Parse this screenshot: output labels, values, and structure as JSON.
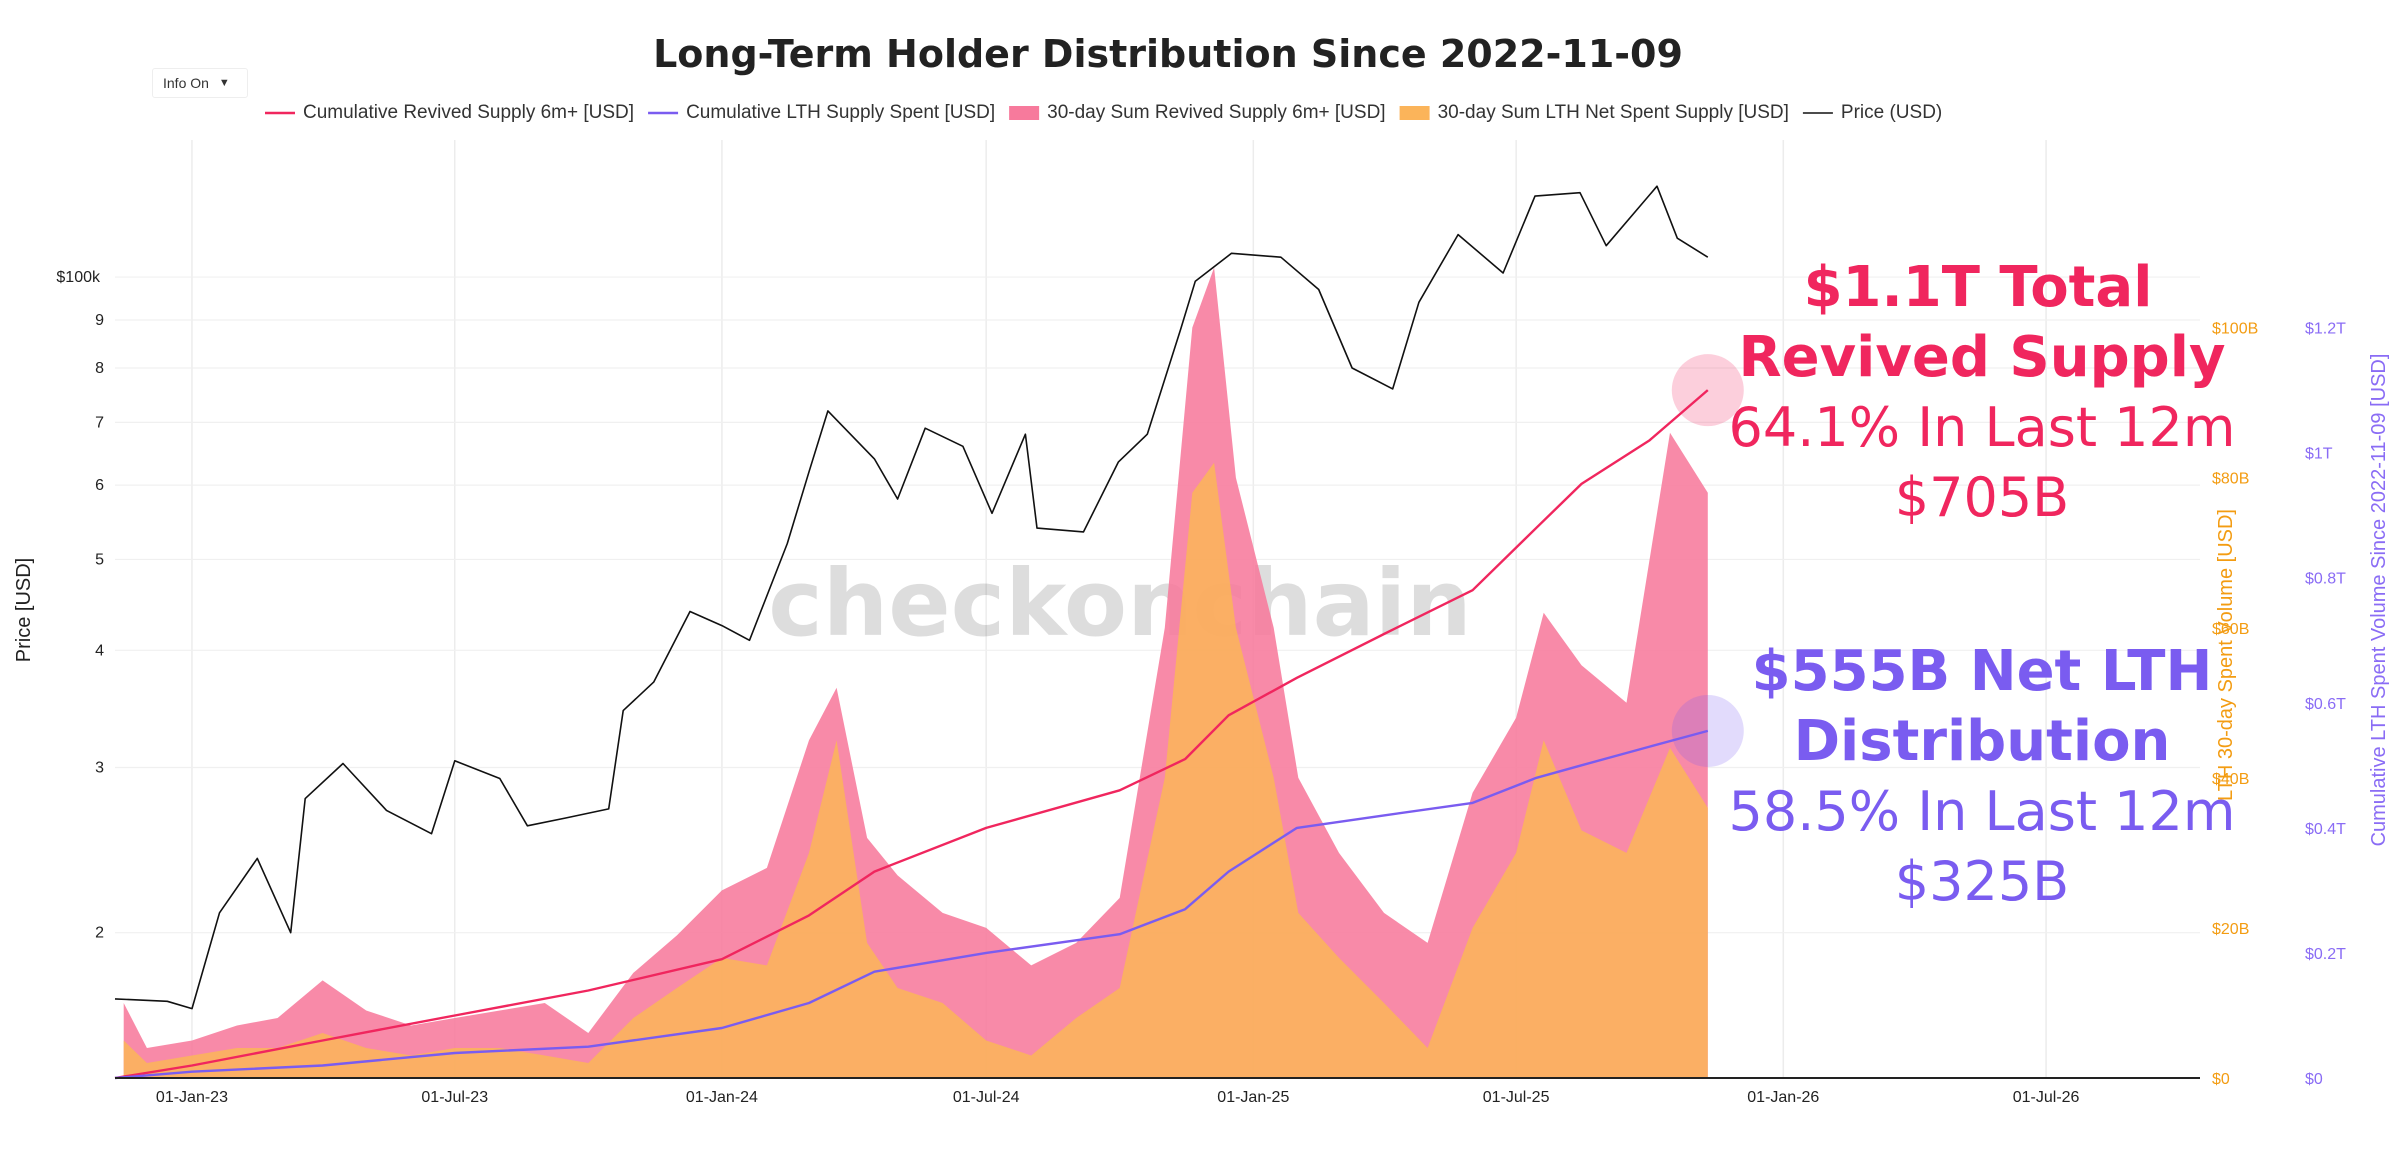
{
  "ui": {
    "info_button": {
      "label": "Info On",
      "caret": "▼"
    },
    "watermark": "checkonchain"
  },
  "colors": {
    "revived": "#f0265e",
    "revived_fill": "#f77a9c",
    "lth_spent": "#7a5cf0",
    "lth_net_fill": "#fbb45a",
    "price": "#111111",
    "left_axis": "#222222",
    "orange_axis": "#f39c12",
    "purple_axis": "#8a6cf5"
  },
  "annotations": {
    "revived": {
      "line1": "$1.1T Total",
      "line2": "Revived Supply",
      "line3": "64.1% In Last 12m",
      "line4": "$705B"
    },
    "lth": {
      "line1": "$555B Net LTH",
      "line2": "Distribution",
      "line3": "58.5% In Last 12m",
      "line4": "$325B"
    }
  },
  "chart_data": {
    "type": "line",
    "title": "Long-Term Holder Distribution Since 2022-11-09",
    "legend_position": "top",
    "grid": true,
    "x_axis": {
      "type": "date",
      "range": [
        "2022-11-09",
        "2026-10-15"
      ],
      "tick_labels": [
        "01-Jan-23",
        "01-Jul-23",
        "01-Jan-24",
        "01-Jul-24",
        "01-Jan-25",
        "01-Jul-25",
        "01-Jan-26",
        "01-Jul-26"
      ],
      "tick_dates": [
        "2023-01-01",
        "2023-07-01",
        "2024-01-01",
        "2024-07-01",
        "2025-01-01",
        "2025-07-01",
        "2026-01-01",
        "2026-07-01"
      ]
    },
    "y_axes": {
      "price": {
        "title": "Price [USD]",
        "scale": "log",
        "range": [
          14000,
          140000
        ],
        "ticks": [
          {
            "value": 20000,
            "label": "2"
          },
          {
            "value": 30000,
            "label": "3"
          },
          {
            "value": 40000,
            "label": "4"
          },
          {
            "value": 50000,
            "label": "5"
          },
          {
            "value": 60000,
            "label": "6"
          },
          {
            "value": 70000,
            "label": "7"
          },
          {
            "value": 80000,
            "label": "8"
          },
          {
            "value": 90000,
            "label": "9"
          },
          {
            "value": 100000,
            "label": "$100k"
          }
        ]
      },
      "spent_volume_30d": {
        "title": "LTH 30-day Spent Volume [USD]",
        "scale": "linear",
        "range": [
          0,
          125
        ],
        "unit": "B",
        "ticks": [
          {
            "value": 0,
            "label": "$0"
          },
          {
            "value": 20,
            "label": "$20B"
          },
          {
            "value": 40,
            "label": "$40B"
          },
          {
            "value": 60,
            "label": "$60B"
          },
          {
            "value": 80,
            "label": "$80B"
          },
          {
            "value": 100,
            "label": "$100B"
          }
        ]
      },
      "cumulative": {
        "title": "Cumulative LTH Spent Volume Since 2022-11-09 [USD]",
        "scale": "linear",
        "range": [
          0,
          1.5
        ],
        "unit": "T",
        "ticks": [
          {
            "value": 0,
            "label": "$0"
          },
          {
            "value": 0.2,
            "label": "$0.2T"
          },
          {
            "value": 0.4,
            "label": "$0.4T"
          },
          {
            "value": 0.6,
            "label": "$0.6T"
          },
          {
            "value": 0.8,
            "label": "$0.8T"
          },
          {
            "value": 1.0,
            "label": "$1T"
          },
          {
            "value": 1.2,
            "label": "$1.2T"
          }
        ]
      }
    },
    "series": [
      {
        "name": "Cumulative Revived Supply 6m+ [USD]",
        "axis": "cumulative",
        "style": "line",
        "color": "#f0265e",
        "points": [
          [
            "2022-11-09",
            0
          ],
          [
            "2023-01-01",
            0.02
          ],
          [
            "2023-04-01",
            0.06
          ],
          [
            "2023-07-01",
            0.1
          ],
          [
            "2023-10-01",
            0.14
          ],
          [
            "2024-01-01",
            0.19
          ],
          [
            "2024-03-01",
            0.26
          ],
          [
            "2024-04-15",
            0.33
          ],
          [
            "2024-07-01",
            0.4
          ],
          [
            "2024-10-01",
            0.46
          ],
          [
            "2024-11-15",
            0.51
          ],
          [
            "2024-12-15",
            0.58
          ],
          [
            "2025-01-31",
            0.64
          ],
          [
            "2025-04-01",
            0.71
          ],
          [
            "2025-06-01",
            0.78
          ],
          [
            "2025-07-15",
            0.88
          ],
          [
            "2025-08-15",
            0.95
          ],
          [
            "2025-10-01",
            1.02
          ],
          [
            "2025-11-10",
            1.1
          ]
        ]
      },
      {
        "name": "Cumulative LTH Supply Spent [USD]",
        "axis": "cumulative",
        "style": "line",
        "color": "#7a5cf0",
        "points": [
          [
            "2022-11-09",
            0
          ],
          [
            "2023-01-01",
            0.01
          ],
          [
            "2023-04-01",
            0.02
          ],
          [
            "2023-07-01",
            0.04
          ],
          [
            "2023-10-01",
            0.05
          ],
          [
            "2024-01-01",
            0.08
          ],
          [
            "2024-03-01",
            0.12
          ],
          [
            "2024-04-15",
            0.17
          ],
          [
            "2024-07-01",
            0.2
          ],
          [
            "2024-10-01",
            0.23
          ],
          [
            "2024-11-15",
            0.27
          ],
          [
            "2024-12-15",
            0.33
          ],
          [
            "2025-01-31",
            0.4
          ],
          [
            "2025-04-01",
            0.42
          ],
          [
            "2025-06-01",
            0.44
          ],
          [
            "2025-07-15",
            0.48
          ],
          [
            "2025-08-15",
            0.5
          ],
          [
            "2025-10-01",
            0.53
          ],
          [
            "2025-11-10",
            0.555
          ]
        ]
      },
      {
        "name": "30-day Sum Revived Supply 6m+ [USD]",
        "axis": "spent_volume_30d",
        "style": "area",
        "color": "#f77a9c",
        "points": [
          [
            "2022-11-15",
            10
          ],
          [
            "2022-12-01",
            4
          ],
          [
            "2023-01-01",
            5
          ],
          [
            "2023-02-01",
            7
          ],
          [
            "2023-03-01",
            8
          ],
          [
            "2023-04-01",
            13
          ],
          [
            "2023-05-01",
            9
          ],
          [
            "2023-06-01",
            7
          ],
          [
            "2023-07-01",
            8
          ],
          [
            "2023-08-01",
            9
          ],
          [
            "2023-09-01",
            10
          ],
          [
            "2023-10-01",
            6
          ],
          [
            "2023-11-01",
            14
          ],
          [
            "2023-12-01",
            19
          ],
          [
            "2024-01-01",
            25
          ],
          [
            "2024-02-01",
            28
          ],
          [
            "2024-03-01",
            45
          ],
          [
            "2024-03-20",
            52
          ],
          [
            "2024-04-10",
            32
          ],
          [
            "2024-05-01",
            27
          ],
          [
            "2024-06-01",
            22
          ],
          [
            "2024-07-01",
            20
          ],
          [
            "2024-08-01",
            15
          ],
          [
            "2024-09-01",
            18
          ],
          [
            "2024-10-01",
            24
          ],
          [
            "2024-11-01",
            60
          ],
          [
            "2024-11-20",
            100
          ],
          [
            "2024-12-05",
            108
          ],
          [
            "2024-12-20",
            80
          ],
          [
            "2025-01-15",
            60
          ],
          [
            "2025-02-01",
            40
          ],
          [
            "2025-03-01",
            30
          ],
          [
            "2025-04-01",
            22
          ],
          [
            "2025-05-01",
            18
          ],
          [
            "2025-06-01",
            38
          ],
          [
            "2025-07-01",
            48
          ],
          [
            "2025-07-20",
            62
          ],
          [
            "2025-08-15",
            55
          ],
          [
            "2025-09-15",
            50
          ],
          [
            "2025-10-15",
            86
          ],
          [
            "2025-11-10",
            78
          ]
        ]
      },
      {
        "name": "30-day Sum LTH Net Spent Supply [USD]",
        "axis": "spent_volume_30d",
        "style": "area",
        "color": "#fbb45a",
        "points": [
          [
            "2022-11-15",
            5
          ],
          [
            "2022-12-01",
            2
          ],
          [
            "2023-01-01",
            3
          ],
          [
            "2023-02-01",
            4
          ],
          [
            "2023-03-01",
            4
          ],
          [
            "2023-04-01",
            6
          ],
          [
            "2023-05-01",
            4
          ],
          [
            "2023-06-01",
            3
          ],
          [
            "2023-07-01",
            4
          ],
          [
            "2023-08-01",
            4
          ],
          [
            "2023-09-01",
            3
          ],
          [
            "2023-10-01",
            2
          ],
          [
            "2023-11-01",
            8
          ],
          [
            "2023-12-01",
            12
          ],
          [
            "2024-01-01",
            16
          ],
          [
            "2024-02-01",
            15
          ],
          [
            "2024-03-01",
            30
          ],
          [
            "2024-03-20",
            45
          ],
          [
            "2024-04-10",
            18
          ],
          [
            "2024-05-01",
            12
          ],
          [
            "2024-06-01",
            10
          ],
          [
            "2024-07-01",
            5
          ],
          [
            "2024-08-01",
            3
          ],
          [
            "2024-09-01",
            8
          ],
          [
            "2024-10-01",
            12
          ],
          [
            "2024-11-01",
            40
          ],
          [
            "2024-11-20",
            78
          ],
          [
            "2024-12-05",
            82
          ],
          [
            "2024-12-20",
            60
          ],
          [
            "2025-01-15",
            40
          ],
          [
            "2025-02-01",
            22
          ],
          [
            "2025-03-01",
            16
          ],
          [
            "2025-04-01",
            10
          ],
          [
            "2025-05-01",
            4
          ],
          [
            "2025-06-01",
            20
          ],
          [
            "2025-07-01",
            30
          ],
          [
            "2025-07-20",
            45
          ],
          [
            "2025-08-15",
            33
          ],
          [
            "2025-09-15",
            30
          ],
          [
            "2025-10-15",
            44
          ],
          [
            "2025-11-10",
            36
          ]
        ]
      },
      {
        "name": "Price (USD)",
        "axis": "price",
        "style": "line",
        "color": "#111111",
        "points": [
          [
            "2022-11-09",
            17000
          ],
          [
            "2022-12-15",
            16900
          ],
          [
            "2023-01-01",
            16600
          ],
          [
            "2023-01-20",
            21000
          ],
          [
            "2023-02-15",
            24000
          ],
          [
            "2023-03-10",
            20000
          ],
          [
            "2023-03-20",
            27800
          ],
          [
            "2023-04-15",
            30300
          ],
          [
            "2023-05-15",
            27000
          ],
          [
            "2023-06-15",
            25500
          ],
          [
            "2023-07-01",
            30500
          ],
          [
            "2023-08-01",
            29200
          ],
          [
            "2023-08-20",
            26000
          ],
          [
            "2023-09-15",
            26500
          ],
          [
            "2023-10-15",
            27100
          ],
          [
            "2023-10-25",
            34500
          ],
          [
            "2023-11-15",
            37000
          ],
          [
            "2023-12-10",
            44000
          ],
          [
            "2024-01-01",
            42500
          ],
          [
            "2024-01-20",
            41000
          ],
          [
            "2024-02-15",
            52000
          ],
          [
            "2024-03-01",
            62000
          ],
          [
            "2024-03-14",
            72000
          ],
          [
            "2024-04-15",
            64000
          ],
          [
            "2024-05-01",
            58000
          ],
          [
            "2024-05-20",
            69000
          ],
          [
            "2024-06-15",
            66000
          ],
          [
            "2024-07-05",
            56000
          ],
          [
            "2024-07-28",
            68000
          ],
          [
            "2024-08-05",
            54000
          ],
          [
            "2024-09-06",
            53500
          ],
          [
            "2024-09-30",
            63500
          ],
          [
            "2024-10-20",
            68000
          ],
          [
            "2024-11-12",
            88000
          ],
          [
            "2024-11-22",
            99000
          ],
          [
            "2024-12-17",
            106000
          ],
          [
            "2025-01-20",
            105000
          ],
          [
            "2025-02-15",
            97000
          ],
          [
            "2025-03-10",
            80000
          ],
          [
            "2025-04-07",
            76000
          ],
          [
            "2025-04-25",
            94000
          ],
          [
            "2025-05-22",
            111000
          ],
          [
            "2025-06-22",
            101000
          ],
          [
            "2025-07-14",
            122000
          ],
          [
            "2025-08-14",
            123000
          ],
          [
            "2025-09-01",
            108000
          ],
          [
            "2025-10-06",
            125000
          ],
          [
            "2025-10-20",
            110000
          ],
          [
            "2025-11-10",
            105000
          ]
        ]
      }
    ],
    "highlight_markers": [
      {
        "series": "Cumulative Revived Supply 6m+ [USD]",
        "date": "2025-11-10",
        "value": 1.1,
        "axis": "cumulative"
      },
      {
        "series": "Cumulative LTH Supply Spent [USD]",
        "date": "2025-11-10",
        "value": 0.555,
        "axis": "cumulative"
      }
    ]
  }
}
